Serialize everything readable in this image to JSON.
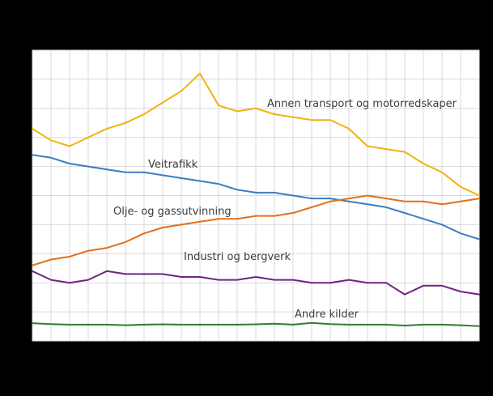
{
  "page": {
    "background": "#000000"
  },
  "chart_data": {
    "type": "line",
    "title": "",
    "xlabel": "",
    "ylabel": "",
    "x_points": 25,
    "ylim": [
      0,
      100
    ],
    "grid": true,
    "legend": "inline-labels",
    "plot_background": "#ffffff",
    "grid_color": "#d9d9d9",
    "label_color": "#3c3c3c",
    "series": [
      {
        "id": "annen-transport-og-motorredskaper",
        "name": "Annen transport og motorredskaper",
        "color": "#f1b30e",
        "values": [
          73,
          69,
          67,
          70,
          73,
          75,
          78,
          82,
          86,
          92,
          81,
          79,
          80,
          78,
          77,
          76,
          76,
          73,
          67,
          66,
          65,
          61,
          58,
          53,
          50
        ]
      },
      {
        "id": "veitrafikk",
        "name": "Veitrafikk",
        "color": "#3f7cbf",
        "values": [
          64,
          63,
          61,
          60,
          59,
          58,
          58,
          57,
          56,
          55,
          54,
          52,
          51,
          51,
          50,
          49,
          49,
          48,
          47,
          46,
          44,
          42,
          40,
          37,
          35
        ]
      },
      {
        "id": "olje-og-gassutvinning",
        "name": "Olje- og gassutvinning",
        "color": "#e1701b",
        "values": [
          26,
          28,
          29,
          31,
          32,
          34,
          37,
          39,
          40,
          41,
          42,
          42,
          43,
          43,
          44,
          46,
          48,
          49,
          50,
          49,
          48,
          48,
          47,
          48,
          49
        ]
      },
      {
        "id": "industri-og-bergverk",
        "name": "Industri og bergverk",
        "color": "#702382",
        "values": [
          24,
          21,
          20,
          21,
          24,
          23,
          23,
          23,
          22,
          22,
          21,
          21,
          22,
          21,
          21,
          20,
          20,
          21,
          20,
          20,
          16,
          19,
          19,
          17,
          16
        ]
      },
      {
        "id": "andre-kilder",
        "name": "Andre kilder",
        "color": "#2e7d32",
        "values": [
          6.1,
          5.8,
          5.6,
          5.6,
          5.6,
          5.4,
          5.6,
          5.7,
          5.6,
          5.6,
          5.6,
          5.6,
          5.7,
          5.9,
          5.6,
          6.2,
          5.8,
          5.6,
          5.6,
          5.6,
          5.3,
          5.6,
          5.6,
          5.4,
          5.1
        ]
      }
    ]
  }
}
